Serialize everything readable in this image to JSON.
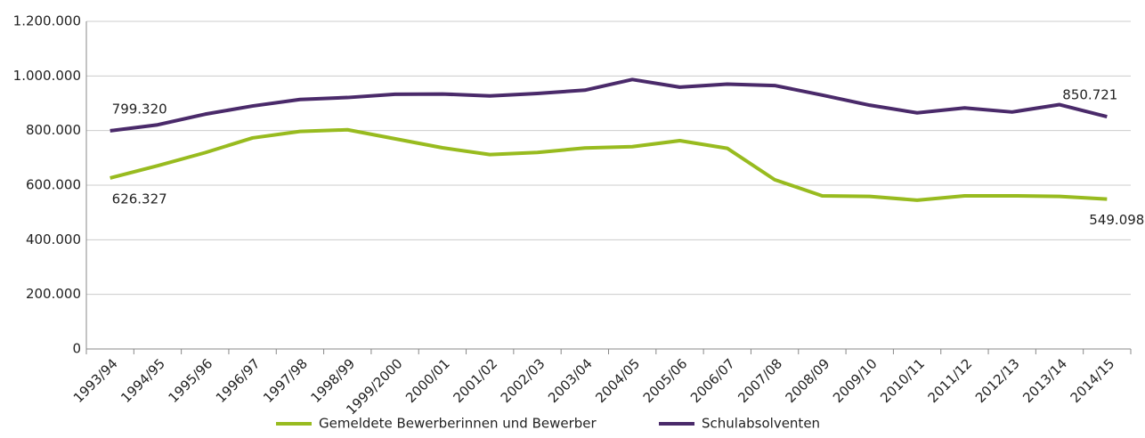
{
  "chart_data": {
    "type": "line",
    "categories": [
      "1993/94",
      "1994/95",
      "1995/96",
      "1996/97",
      "1997/98",
      "1998/99",
      "1999/2000",
      "2000/01",
      "2001/02",
      "2002/03",
      "2003/04",
      "2004/05",
      "2005/06",
      "2006/07",
      "2007/08",
      "2008/09",
      "2009/10",
      "2010/11",
      "2011/12",
      "2012/13",
      "2013/14",
      "2014/15"
    ],
    "series": [
      {
        "name": "Gemeldete Bewerberinnen und Bewerber",
        "color": "#98bb1f",
        "values": [
          626327,
          671000,
          719000,
          773000,
          797000,
          803000,
          770000,
          737000,
          712000,
          720000,
          736000,
          741000,
          763000,
          735000,
          620000,
          561000,
          559000,
          545000,
          561000,
          561000,
          559000,
          549098
        ],
        "value_labels": [
          "626.327",
          null,
          null,
          null,
          null,
          null,
          null,
          null,
          null,
          null,
          null,
          null,
          null,
          null,
          null,
          null,
          null,
          null,
          null,
          null,
          null,
          "549.098"
        ]
      },
      {
        "name": "Schulabsolventen",
        "color": "#4a2a6a",
        "values": [
          799320,
          821000,
          860000,
          890000,
          914000,
          921000,
          933000,
          934000,
          927000,
          936000,
          948000,
          987000,
          959000,
          970000,
          965000,
          930000,
          893000,
          865000,
          883000,
          868000,
          895000,
          850721
        ],
        "value_labels": [
          "799.320",
          null,
          null,
          null,
          null,
          null,
          null,
          null,
          null,
          null,
          null,
          null,
          null,
          null,
          null,
          null,
          null,
          null,
          null,
          null,
          null,
          "850.721"
        ]
      }
    ],
    "ylim": [
      0,
      1200000
    ],
    "yticks": [
      0,
      {
        "value": 200000,
        "label": "200.000"
      },
      {
        "value": 400000,
        "label": "400.000"
      },
      {
        "value": 600000,
        "label": "600.000"
      },
      {
        "value": 800000,
        "label": "800.000"
      },
      {
        "value": 1000000,
        "label": "1.000.000"
      },
      {
        "value": 1200000,
        "label": "1.200.000"
      }
    ],
    "grid": true,
    "legend": "bottom"
  }
}
